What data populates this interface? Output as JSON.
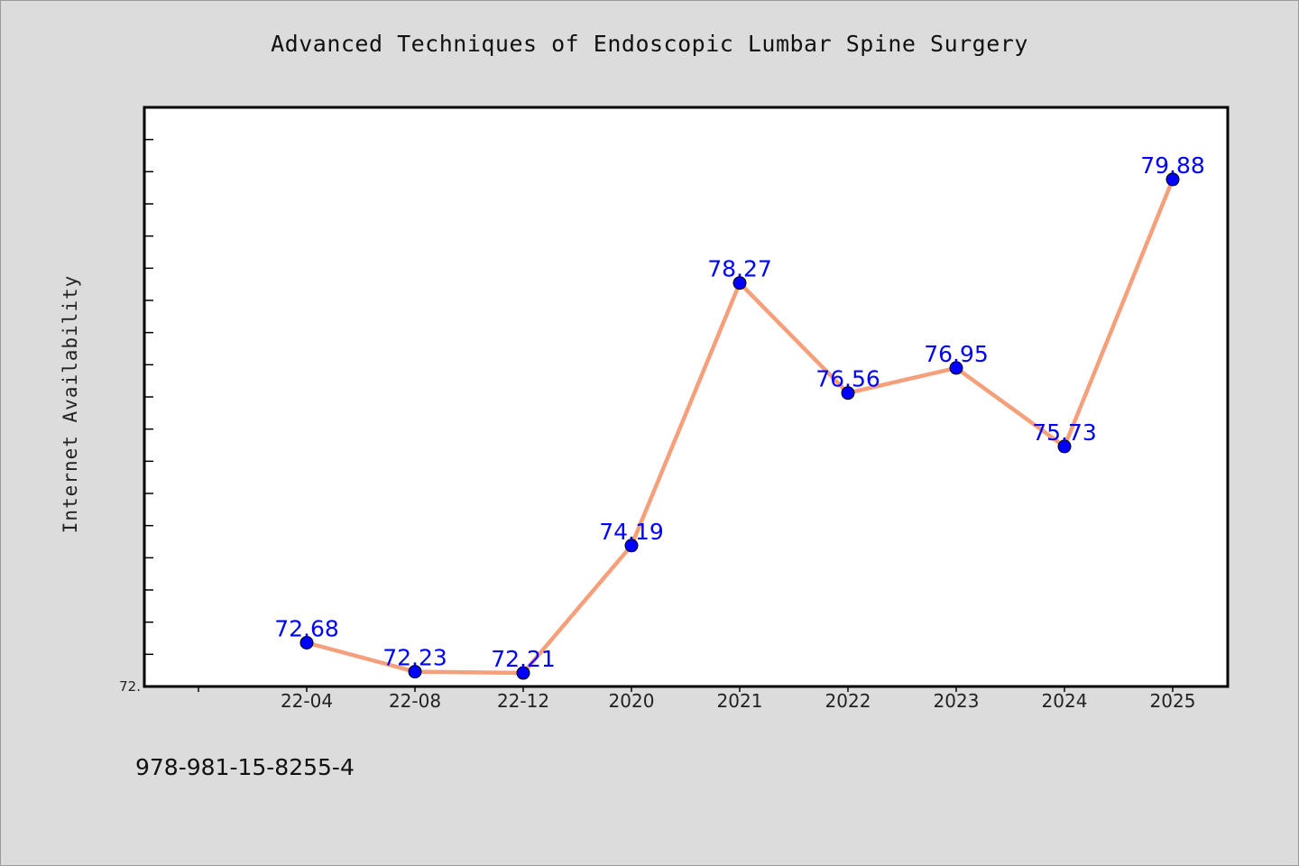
{
  "chart_data": {
    "type": "line",
    "title": "Advanced Techniques of Endoscopic Lumbar Spine Surgery",
    "ylabel": "Internet Availability",
    "xlabel": "",
    "categories": [
      "22-04",
      "22-08",
      "22-12",
      "2020",
      "2021",
      "2022",
      "2023",
      "2024",
      "2025"
    ],
    "series": [
      {
        "values": [
          72.68,
          72.23,
          72.21,
          74.19,
          78.27,
          76.56,
          76.95,
          75.73,
          79.88
        ],
        "labels": [
          "72.68",
          "72.23",
          "72.21",
          "74.19",
          "78.27",
          "76.56",
          "76.95",
          "75.73",
          "79.88"
        ]
      }
    ],
    "ylim": [
      72.0,
      81.0
    ],
    "y_tick_labels": [
      "72."
    ],
    "grid": false,
    "legend": "none",
    "colors": {
      "line": "#f5a07a",
      "marker": "#0000ff",
      "label": "#0000ff",
      "background": "#dcdcdc",
      "plot_bg": "#ffffff"
    }
  },
  "footer": {
    "isbn": "978-981-15-8255-4"
  }
}
